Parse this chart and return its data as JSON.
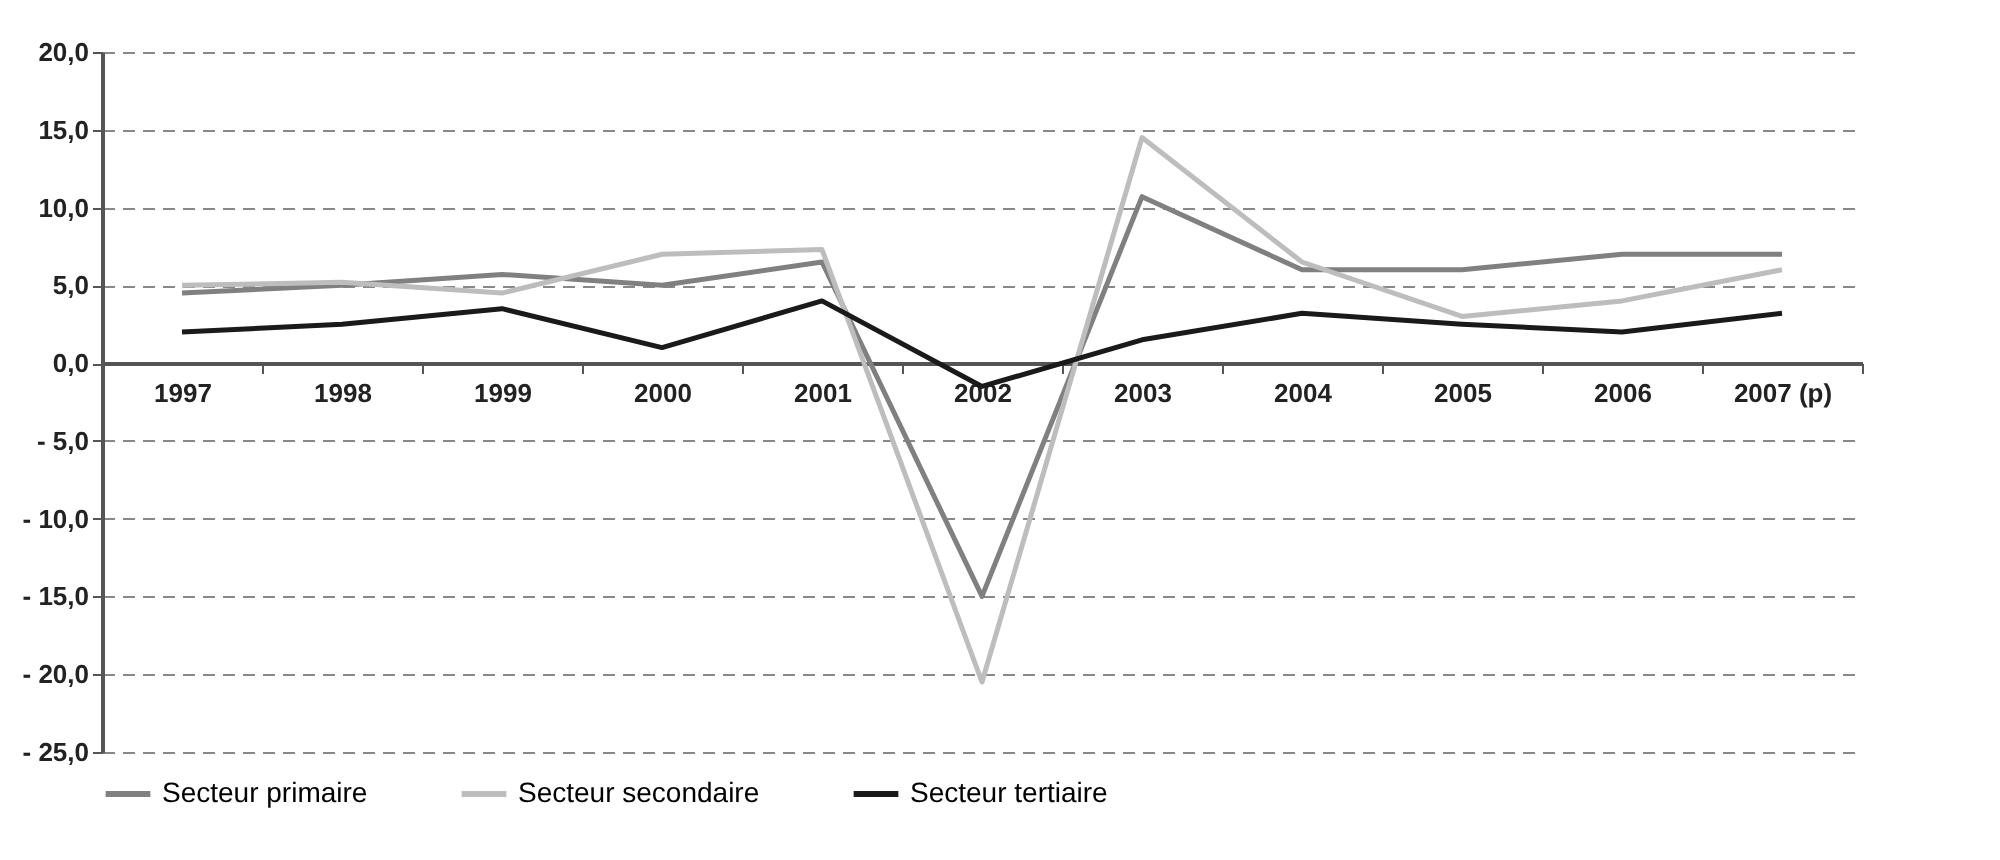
{
  "chart_data": {
    "type": "line",
    "categories": [
      "1997",
      "1998",
      "1999",
      "2000",
      "2001",
      "2002",
      "2003",
      "2004",
      "2005",
      "2006",
      "2007 (p)"
    ],
    "series": [
      {
        "name": "Secteur primaire",
        "color": "#808080",
        "values": [
          4.5,
          5.0,
          5.7,
          5.0,
          6.5,
          -15.0,
          10.7,
          6.0,
          6.0,
          7.0,
          7.0
        ]
      },
      {
        "name": "Secteur secondaire",
        "color": "#bdbdbd",
        "values": [
          5.0,
          5.2,
          4.5,
          7.0,
          7.3,
          -20.5,
          14.5,
          6.5,
          3.0,
          4.0,
          6.0
        ]
      },
      {
        "name": "Secteur tertiaire",
        "color": "#1a1a1a",
        "values": [
          2.0,
          2.5,
          3.5,
          1.0,
          4.0,
          -1.5,
          1.5,
          3.2,
          2.5,
          2.0,
          3.2
        ]
      }
    ],
    "ylim": [
      -25,
      20
    ],
    "yticks": [
      {
        "value": 20,
        "label": "20,0"
      },
      {
        "value": 15,
        "label": "15,0"
      },
      {
        "value": 10,
        "label": "10,0"
      },
      {
        "value": 5,
        "label": "5,0"
      },
      {
        "value": 0,
        "label": "0,0"
      },
      {
        "value": -5,
        "label": "- 5,0"
      },
      {
        "value": -10,
        "label": "- 10,0"
      },
      {
        "value": -15,
        "label": "- 15,0"
      },
      {
        "value": -20,
        "label": "- 20,0"
      },
      {
        "value": -25,
        "label": "- 25,0"
      }
    ],
    "grid": "y",
    "legend": "bottom",
    "line_style": "solid",
    "marker": "none"
  }
}
